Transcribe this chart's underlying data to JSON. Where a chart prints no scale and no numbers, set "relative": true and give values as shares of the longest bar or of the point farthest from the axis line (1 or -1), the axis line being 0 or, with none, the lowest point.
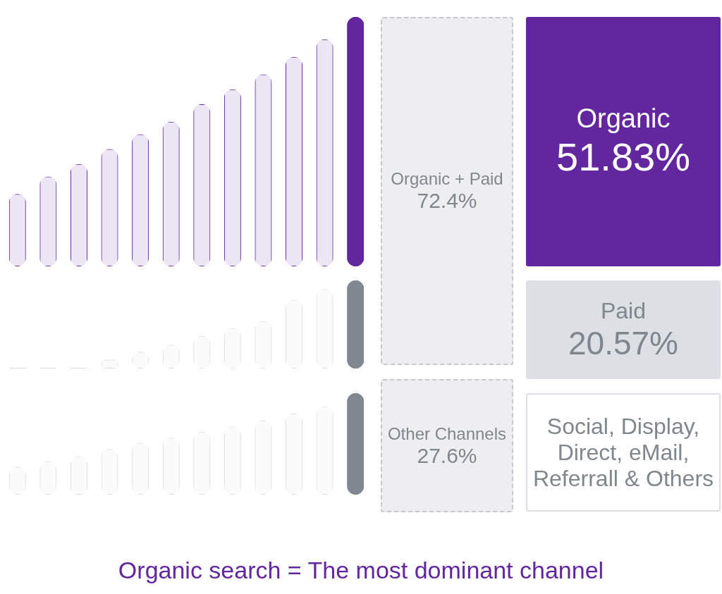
{
  "chart_data": [
    {
      "type": "bar",
      "relative": true,
      "categories": [
        null,
        null,
        null,
        null,
        null,
        null,
        null,
        null,
        null,
        null,
        null,
        null
      ],
      "values": [
        0.29,
        0.36,
        0.41,
        0.47,
        0.53,
        0.58,
        0.65,
        0.71,
        0.77,
        0.84,
        0.91,
        1
      ],
      "colors": [
        "#62269e",
        "#62269e",
        "#62269e",
        "#62269e",
        "#62269e",
        "#62269e",
        "#62269e",
        "#62269e",
        "#62269e",
        "#62269e",
        "#62269e",
        "#62269e"
      ]
    },
    {
      "type": "bar",
      "relative": true,
      "categories": [
        null,
        null,
        null,
        null,
        null,
        null,
        null,
        null,
        null,
        null,
        null,
        null
      ],
      "values": [
        0.01,
        0.01,
        0.01,
        0.1,
        0.19,
        0.27,
        0.37,
        0.46,
        0.54,
        0.78,
        0.9,
        1
      ],
      "colors": [
        "#dcdce2",
        "#dcdce2",
        "#dcdce2",
        "#dcdce2",
        "#dcdce2",
        "#dcdce2",
        "#dcdce2",
        "#dcdce2",
        "#dcdce2",
        "#dcdce2",
        "#dcdce2",
        "#7f8790"
      ]
    },
    {
      "type": "bar",
      "relative": true,
      "categories": [
        null,
        null,
        null,
        null,
        null,
        null,
        null,
        null,
        null,
        null,
        null,
        null
      ],
      "values": [
        0.27,
        0.33,
        0.38,
        0.45,
        0.51,
        0.56,
        0.62,
        0.67,
        0.73,
        0.8,
        0.87,
        1
      ],
      "colors": [
        "#dcdce2",
        "#dcdce2",
        "#dcdce2",
        "#dcdce2",
        "#dcdce2",
        "#dcdce2",
        "#dcdce2",
        "#dcdce2",
        "#dcdce2",
        "#dcdce2",
        "#dcdce2",
        "#7f8790"
      ]
    },
    {
      "type": "other",
      "categories": [
        "Organic + Paid",
        "Other Channels",
        "Organic",
        "Paid",
        "Social, Display, Direct, eMail, Referrall & Others"
      ],
      "values": [
        72.4,
        27.6,
        51.83,
        20.57,
        null
      ],
      "value_labels": [
        "72.4%",
        "27.6%",
        "51.83%",
        "20.57%",
        null
      ],
      "colors": [
        "#eeeef0",
        "#eeeef0",
        "#62269e",
        "#dcdfe3",
        "#ffffff"
      ],
      "annotations": [
        "Organic search = The most dominant channel"
      ]
    }
  ]
}
